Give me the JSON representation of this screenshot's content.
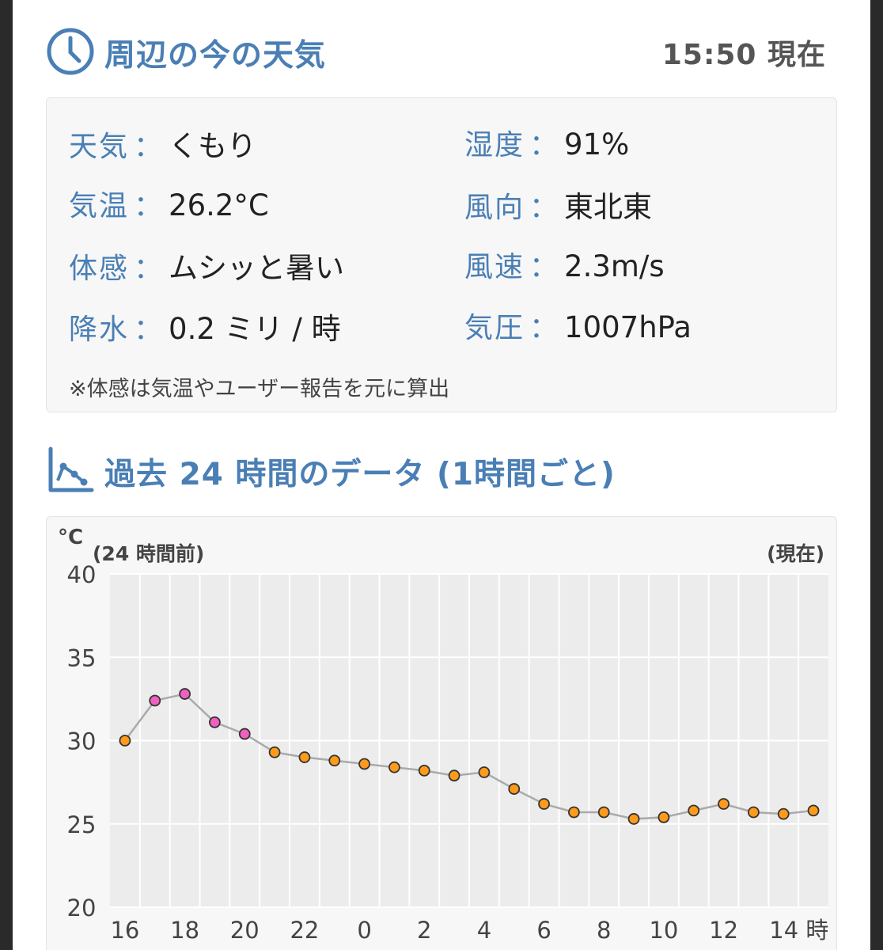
{
  "current": {
    "title": "周辺の今の天気",
    "time": "15:50 現在",
    "items": [
      {
        "label": "天気",
        "value": "くもり"
      },
      {
        "label": "湿度",
        "value": "91%"
      },
      {
        "label": "気温",
        "value": "26.2°C"
      },
      {
        "label": "風向",
        "value": "東北東"
      },
      {
        "label": "体感",
        "value": "ムシッと暑い"
      },
      {
        "label": "風速",
        "value": "2.3m/s"
      },
      {
        "label": "降水",
        "value": "0.2 ミリ / 時"
      },
      {
        "label": "気圧",
        "value": "1007hPa"
      }
    ],
    "separator": "：",
    "note": "※体感は気温やユーザー報告を元に算出"
  },
  "history": {
    "title": "過去 24 時間のデータ (1時間ごと)"
  },
  "colors": {
    "accent": "#4a7fb5",
    "point_hot": "#f060c0",
    "point_normal": "#ff9a1a",
    "line": "#aaaaaa"
  },
  "chart_data": {
    "type": "line",
    "unit_label": "°C",
    "left_note": "(24 時間前)",
    "right_note": "(現在)",
    "ylim": [
      20,
      40
    ],
    "yticks": [
      40,
      35,
      30,
      25,
      20
    ],
    "xtick_labels": [
      "16",
      "18",
      "20",
      "22",
      "0",
      "2",
      "4",
      "6",
      "8",
      "10",
      "12",
      "14 時"
    ],
    "hours": [
      16,
      17,
      18,
      19,
      20,
      21,
      22,
      23,
      0,
      1,
      2,
      3,
      4,
      5,
      6,
      7,
      8,
      9,
      10,
      11,
      12,
      13,
      14,
      15
    ],
    "values": [
      30.0,
      32.4,
      32.8,
      31.1,
      30.4,
      29.3,
      29.0,
      28.8,
      28.6,
      28.4,
      28.2,
      27.9,
      28.1,
      27.1,
      26.2,
      25.7,
      25.7,
      25.3,
      25.4,
      25.8,
      26.2,
      25.7,
      25.6,
      25.8
    ],
    "hot_threshold": 30.1,
    "grid": true
  }
}
